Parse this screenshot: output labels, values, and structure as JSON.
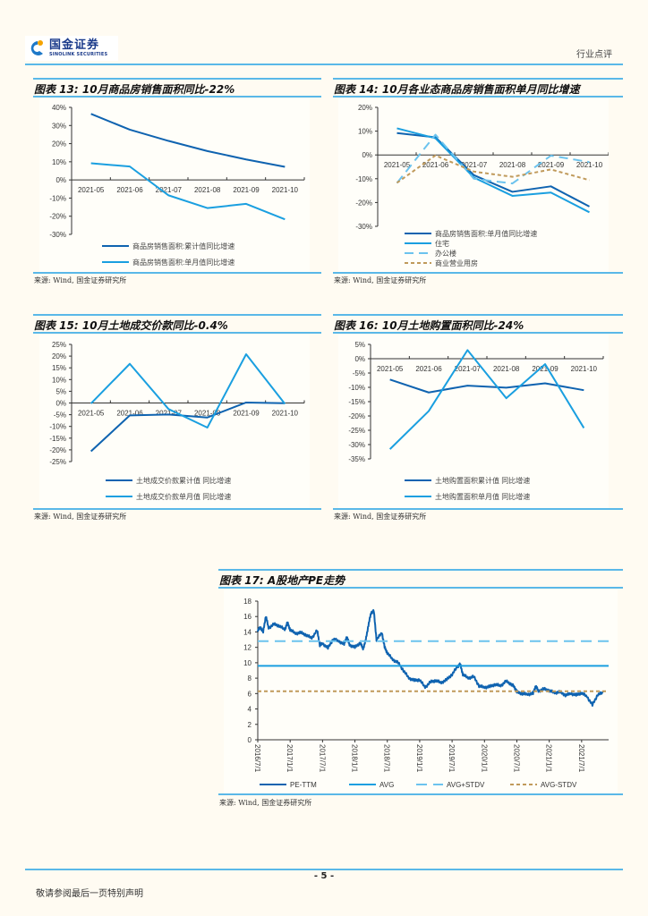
{
  "header": {
    "logo_cn": "国金证券",
    "logo_en": "SINOLINK SECURITIES",
    "section": "行业点评",
    "colors": {
      "brand_blue": "#1a3a8a",
      "accent_line": "#5ab8e8"
    }
  },
  "footer": {
    "page_number": "- 5 -",
    "disclaimer": "敬请参阅最后一页特别声明"
  },
  "charts": [
    {
      "id": "c13",
      "title": "图表 13: 10月商品房销售面积同比-22%",
      "source": "来源: Wind, 国金证券研究所"
    },
    {
      "id": "c14",
      "title": "图表 14: 10月各业态商品房销售面积单月同比增速",
      "source": "来源: Wind, 国金证券研究所"
    },
    {
      "id": "c15",
      "title": "图表 15: 10月土地成交价款同比-0.4%",
      "source": "来源: Wind, 国金证券研究所"
    },
    {
      "id": "c16",
      "title": "图表 16: 10月土地购置面积同比-24%",
      "source": "来源: Wind, 国金证券研究所"
    },
    {
      "id": "c17",
      "title": "图表 17: A股地产PE走势",
      "source": "来源: Wind, 国金证券研究所"
    }
  ],
  "chart_data": [
    {
      "type": "line",
      "title": "图表 13: 10月商品房销售面积同比-22%",
      "categories": [
        "2021-05",
        "2021-06",
        "2021-07",
        "2021-08",
        "2021-09",
        "2021-10"
      ],
      "ylim": [
        -30,
        40
      ],
      "yticks": [
        40,
        30,
        20,
        10,
        0,
        -10,
        -20,
        -30
      ],
      "ytick_suffix": "%",
      "legend_position": "bottom",
      "series": [
        {
          "name": "商品房销售面积:累计值同比增速",
          "color": "#0f63b0",
          "dash": "",
          "values": [
            36.4,
            27.7,
            21.5,
            15.9,
            11.3,
            7.2
          ]
        },
        {
          "name": "商品房销售面积:单月值同比增速",
          "color": "#1a9fe0",
          "dash": "",
          "values": [
            9.2,
            7.4,
            -8.5,
            -15.5,
            -13.2,
            -21.7
          ]
        }
      ]
    },
    {
      "type": "line",
      "title": "图表 14: 10月各业态商品房销售面积单月同比增速",
      "categories": [
        "2021-05",
        "2021-06",
        "2021-07",
        "2021-08",
        "2021-09",
        "2021-10"
      ],
      "ylim": [
        -30,
        20
      ],
      "yticks": [
        20,
        10,
        0,
        -10,
        -20,
        -30
      ],
      "ytick_suffix": "%",
      "legend_position": "bottom",
      "series": [
        {
          "name": "商品房销售面积:单月值同比增速",
          "color": "#0f63b0",
          "dash": "",
          "values": [
            9.2,
            7.4,
            -8.5,
            -15.5,
            -13.2,
            -21.7
          ]
        },
        {
          "name": "住宅",
          "color": "#1a9fe0",
          "dash": "",
          "values": [
            11.2,
            7.0,
            -9.5,
            -17.2,
            -15.8,
            -24.1
          ]
        },
        {
          "name": "办公楼",
          "color": "#6cc3ee",
          "dash": "10,6",
          "values": [
            -11.8,
            8.5,
            -10.0,
            -12.0,
            -0.3,
            -3.0
          ]
        },
        {
          "name": "商业营业用房",
          "color": "#c09a5b",
          "dash": "4,3",
          "values": [
            -11.7,
            -0.2,
            -7.0,
            -9.2,
            -6.1,
            -10.6
          ]
        }
      ]
    },
    {
      "type": "line",
      "title": "图表 15: 10月土地成交价款同比-0.4%",
      "categories": [
        "2021-05",
        "2021-06",
        "2021-07",
        "2021-08",
        "2021-09",
        "2021-10"
      ],
      "ylim": [
        -25,
        25
      ],
      "yticks": [
        25,
        20,
        15,
        10,
        5,
        0,
        -5,
        -10,
        -15,
        -20,
        -25
      ],
      "ytick_suffix": "%",
      "legend_position": "bottom",
      "series": [
        {
          "name": "土地成交价款累计值 同比增速",
          "color": "#0f63b0",
          "dash": "",
          "values": [
            -20.6,
            -5.3,
            -4.9,
            -6.2,
            0.2,
            -0.1
          ]
        },
        {
          "name": "土地成交价款单月值 同比增速",
          "color": "#1a9fe0",
          "dash": "",
          "values": [
            -0.2,
            16.7,
            -2.6,
            -10.5,
            20.8,
            -0.4
          ]
        }
      ]
    },
    {
      "type": "line",
      "title": "图表 16: 10月土地购置面积同比-24%",
      "categories": [
        "2021-05",
        "2021-06",
        "2021-07",
        "2021-08",
        "2021-09",
        "2021-10"
      ],
      "ylim": [
        -35,
        5
      ],
      "yticks": [
        5,
        0,
        -5,
        -10,
        -15,
        -20,
        -25,
        -30,
        -35
      ],
      "ytick_suffix": "%",
      "legend_position": "bottom",
      "series": [
        {
          "name": "土地购置面积累计值 同比增速",
          "color": "#0f63b0",
          "dash": "",
          "values": [
            -7.3,
            -11.8,
            -9.4,
            -10.1,
            -8.6,
            -11.0
          ]
        },
        {
          "name": "土地购置面积单月值 同比增速",
          "color": "#1a9fe0",
          "dash": "",
          "values": [
            -31.6,
            -18.3,
            3.0,
            -13.8,
            -1.9,
            -24.2
          ]
        }
      ]
    },
    {
      "type": "line",
      "title": "图表 17: A股地产PE走势",
      "x_ticks": [
        "2016/7/1",
        "2017/1/1",
        "2017/7/1",
        "2018/1/1",
        "2018/7/1",
        "2019/1/1",
        "2019/7/1",
        "2020/1/1",
        "2020/7/1",
        "2021/1/1",
        "2021/7/1"
      ],
      "x_range_months": [
        0,
        64
      ],
      "ylim": [
        0,
        18
      ],
      "yticks": [
        18,
        16,
        14,
        12,
        10,
        8,
        6,
        4,
        2,
        0
      ],
      "legend_position": "bottom",
      "series": [
        {
          "name": "PE-TTM",
          "color": "#0f63b0",
          "dash": "",
          "points": [
            [
              0,
              14.2
            ],
            [
              0.5,
              14.6
            ],
            [
              1,
              14.0
            ],
            [
              1.5,
              16.1
            ],
            [
              2,
              14.5
            ],
            [
              3,
              15.0
            ],
            [
              4,
              14.8
            ],
            [
              5,
              14.3
            ],
            [
              5.5,
              15.2
            ],
            [
              6,
              14.3
            ],
            [
              7,
              13.8
            ],
            [
              8,
              13.9
            ],
            [
              9,
              13.6
            ],
            [
              10,
              13.2
            ],
            [
              11,
              14.2
            ],
            [
              11.5,
              12.3
            ],
            [
              12,
              12.5
            ],
            [
              13,
              11.9
            ],
            [
              14,
              13.1
            ],
            [
              15,
              12.8
            ],
            [
              16,
              12.4
            ],
            [
              16.5,
              13.4
            ],
            [
              17,
              12.3
            ],
            [
              18,
              12.0
            ],
            [
              19,
              12.6
            ],
            [
              19.5,
              11.8
            ],
            [
              20,
              12.9
            ],
            [
              20.5,
              14.9
            ],
            [
              21,
              16.5
            ],
            [
              21.5,
              16.7
            ],
            [
              22,
              13.0
            ],
            [
              23,
              13.9
            ],
            [
              23.5,
              12.0
            ],
            [
              24,
              11.3
            ],
            [
              25,
              10.4
            ],
            [
              26,
              10.0
            ],
            [
              27,
              9.0
            ],
            [
              28,
              8.0
            ],
            [
              29,
              7.7
            ],
            [
              30,
              7.8
            ],
            [
              31,
              6.8
            ],
            [
              32,
              7.5
            ],
            [
              33,
              7.7
            ],
            [
              34,
              7.4
            ],
            [
              35,
              7.8
            ],
            [
              36,
              8.5
            ],
            [
              37,
              9.5
            ],
            [
              37.5,
              9.8
            ],
            [
              38,
              8.5
            ],
            [
              39,
              8.0
            ],
            [
              40,
              8.2
            ],
            [
              41,
              7.0
            ],
            [
              42,
              6.8
            ],
            [
              43,
              6.9
            ],
            [
              44,
              7.2
            ],
            [
              45,
              7.0
            ],
            [
              46,
              7.6
            ],
            [
              47,
              7.2
            ],
            [
              47.5,
              6.9
            ],
            [
              48,
              6.2
            ],
            [
              49,
              6.0
            ],
            [
              50,
              5.9
            ],
            [
              51,
              6.0
            ],
            [
              51.5,
              7.0
            ],
            [
              52,
              6.3
            ],
            [
              53,
              6.6
            ],
            [
              54,
              6.4
            ],
            [
              55,
              6.1
            ],
            [
              56,
              6.2
            ],
            [
              57,
              5.8
            ],
            [
              58,
              6.0
            ],
            [
              59,
              5.8
            ],
            [
              60,
              6.1
            ],
            [
              61,
              5.6
            ],
            [
              62,
              4.5
            ],
            [
              63,
              5.9
            ],
            [
              64,
              6.1
            ]
          ]
        },
        {
          "name": "AVG",
          "color": "#1a9fe0",
          "dash": "",
          "constant": 9.6
        },
        {
          "name": "AVG+STDV",
          "color": "#6cc3ee",
          "dash": "12,7",
          "constant": 12.8
        },
        {
          "name": "AVG-STDV",
          "color": "#c09a5b",
          "dash": "4,3",
          "constant": 6.3
        }
      ]
    }
  ]
}
